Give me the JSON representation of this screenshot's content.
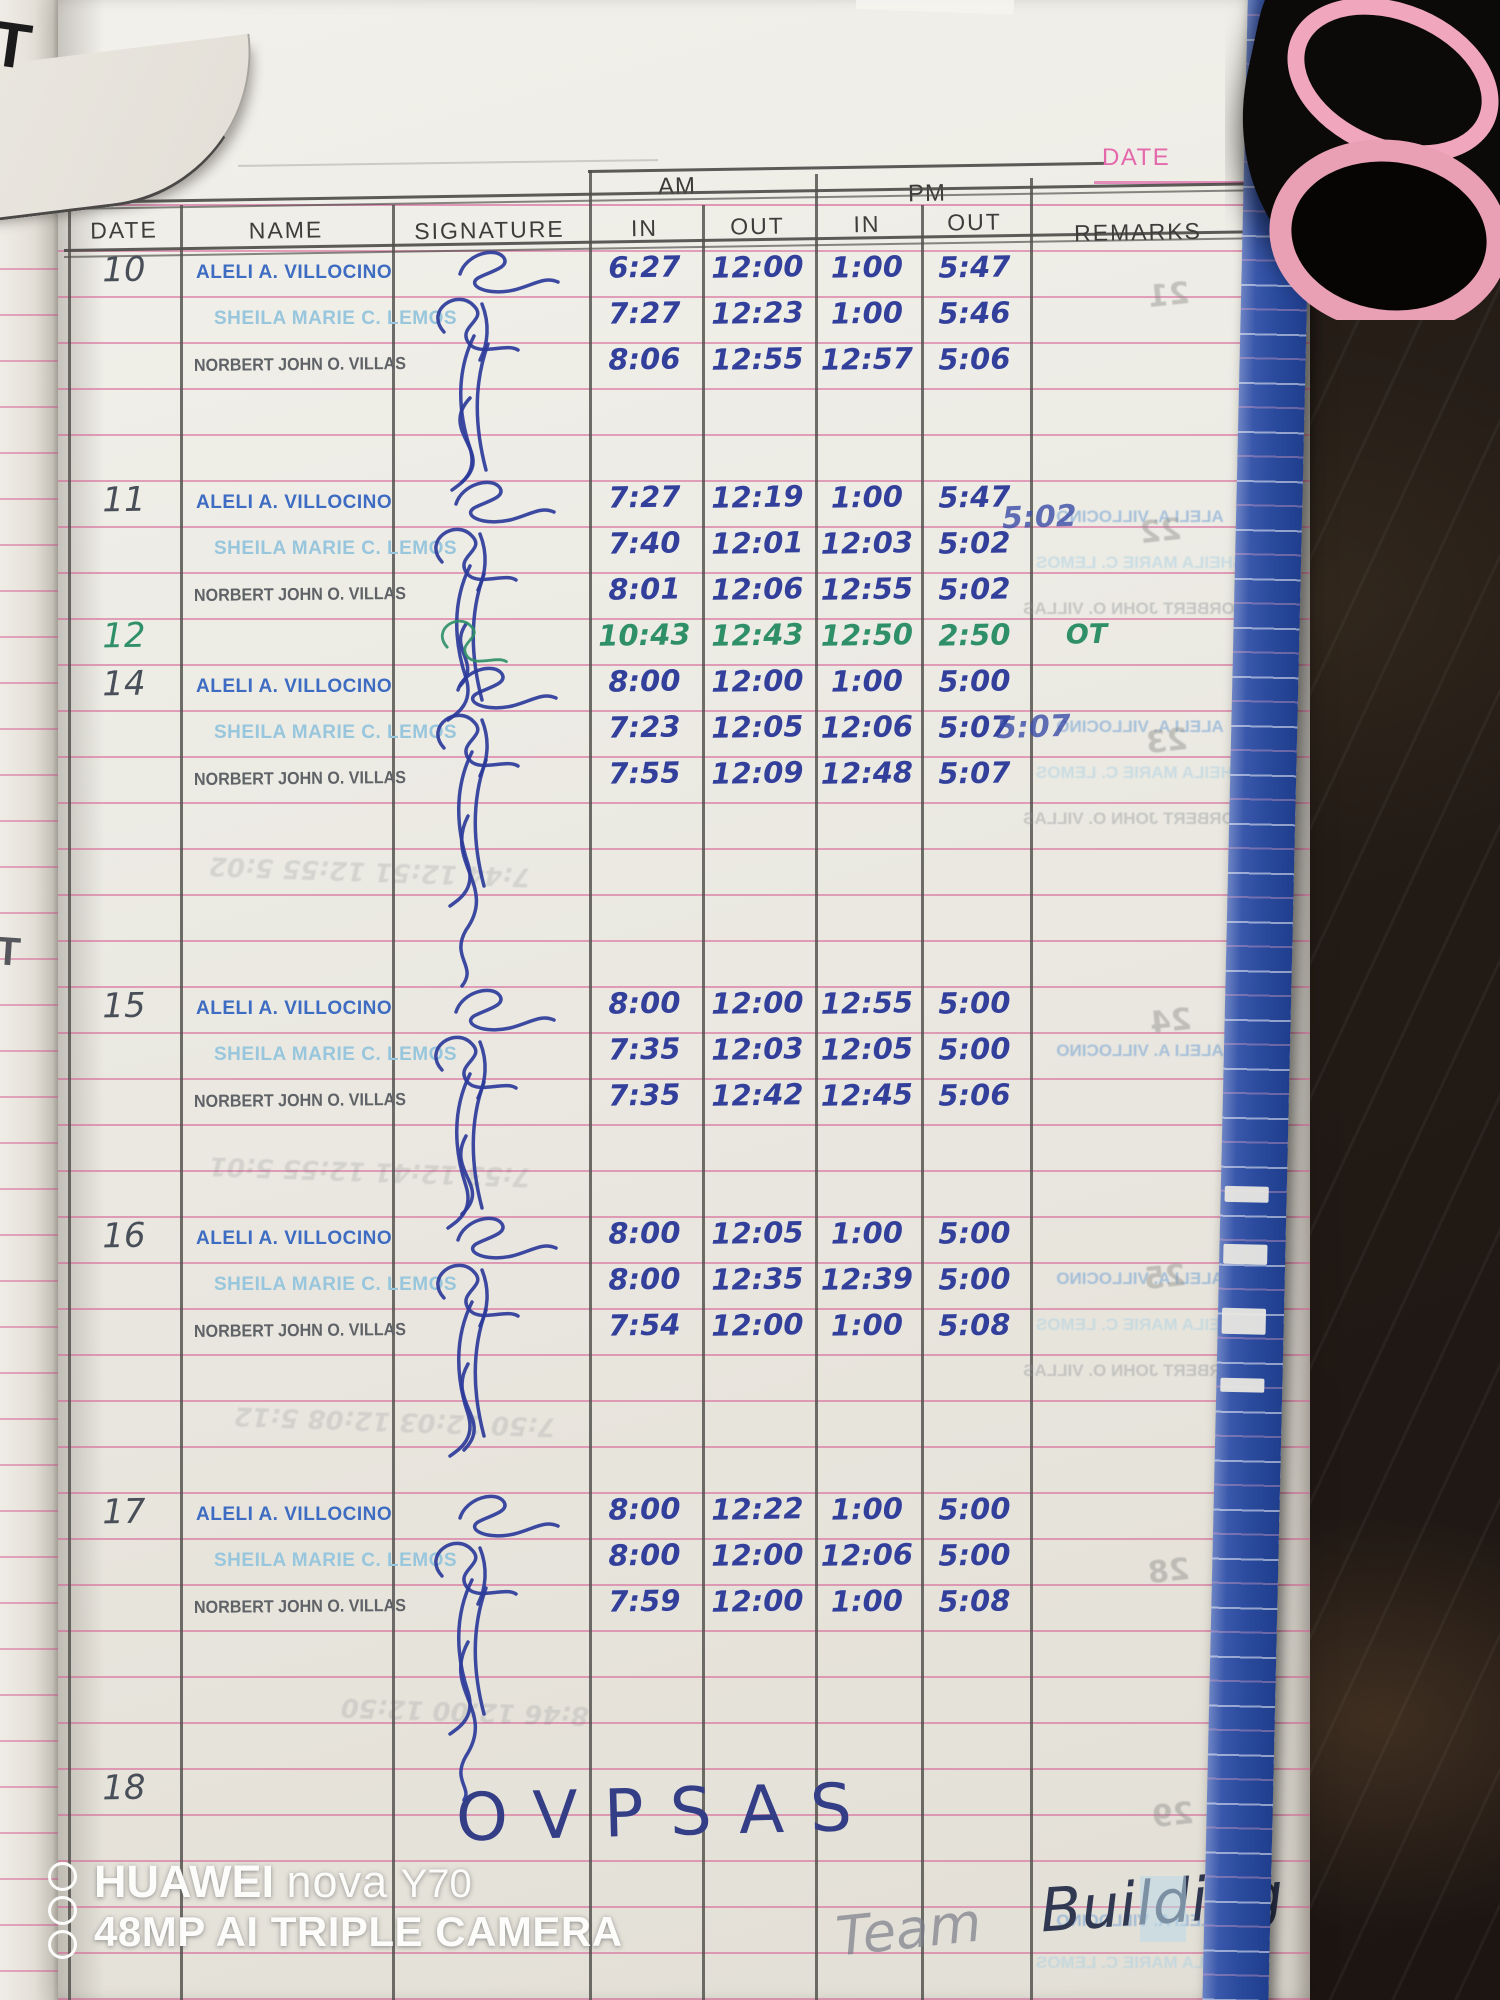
{
  "table": {
    "am_label": "AM",
    "pm_label": "PM",
    "date_label": "DATE",
    "columns": [
      "DATE",
      "NAME",
      "SIGNATURE",
      "IN",
      "OUT",
      "IN",
      "OUT",
      "REMARKS"
    ],
    "days": [
      {
        "date": "10",
        "ink": "blue",
        "entries": [
          {
            "name": "ALELI A. VILLOCINO",
            "style": "aleli",
            "in_am": "6:27",
            "out_am": "12:00",
            "in_pm": "1:00",
            "out_pm": "5:47",
            "remarks": ""
          },
          {
            "name": "SHEILA MARIE C. LEMOS",
            "style": "sheila",
            "in_am": "7:27",
            "out_am": "12:23",
            "in_pm": "1:00",
            "out_pm": "5:46",
            "remarks": ""
          },
          {
            "name": "NORBERT JOHN O. VILLAS",
            "style": "norbert",
            "in_am": "8:06",
            "out_am": "12:55",
            "in_pm": "12:57",
            "out_pm": "5:06",
            "remarks": ""
          }
        ]
      },
      {
        "date": "11",
        "ink": "blue",
        "entries": [
          {
            "name": "ALELI A. VILLOCINO",
            "style": "aleli",
            "in_am": "7:27",
            "out_am": "12:19",
            "in_pm": "1:00",
            "out_pm": "5:47",
            "remarks": ""
          },
          {
            "name": "SHEILA MARIE C. LEMOS",
            "style": "sheila",
            "in_am": "7:40",
            "out_am": "12:01",
            "in_pm": "12:03",
            "out_pm": "5:02",
            "remarks": ""
          },
          {
            "name": "NORBERT JOHN O. VILLAS",
            "style": "norbert",
            "in_am": "8:01",
            "out_am": "12:06",
            "in_pm": "12:55",
            "out_pm": "5:02",
            "remarks": ""
          }
        ]
      },
      {
        "date": "12",
        "ink": "green",
        "entries": [
          {
            "name": "",
            "style": "none",
            "in_am": "10:43",
            "out_am": "12:43",
            "in_pm": "12:50",
            "out_pm": "2:50",
            "remarks": "OT"
          }
        ]
      },
      {
        "date": "14",
        "ink": "blue",
        "entries": [
          {
            "name": "ALELI A. VILLOCINO",
            "style": "aleli",
            "in_am": "8:00",
            "out_am": "12:00",
            "in_pm": "1:00",
            "out_pm": "5:00",
            "remarks": ""
          },
          {
            "name": "SHEILA MARIE C. LEMOS",
            "style": "sheila",
            "in_am": "7:23",
            "out_am": "12:05",
            "in_pm": "12:06",
            "out_pm": "5:07",
            "remarks": ""
          },
          {
            "name": "NORBERT JOHN O. VILLAS",
            "style": "norbert",
            "in_am": "7:55",
            "out_am": "12:09",
            "in_pm": "12:48",
            "out_pm": "5:07",
            "remarks": ""
          }
        ]
      },
      {
        "date": "15",
        "ink": "blue",
        "entries": [
          {
            "name": "ALELI A. VILLOCINO",
            "style": "aleli",
            "in_am": "8:00",
            "out_am": "12:00",
            "in_pm": "12:55",
            "out_pm": "5:00",
            "remarks": ""
          },
          {
            "name": "SHEILA MARIE C. LEMOS",
            "style": "sheila",
            "in_am": "7:35",
            "out_am": "12:03",
            "in_pm": "12:05",
            "out_pm": "5:00",
            "remarks": ""
          },
          {
            "name": "NORBERT JOHN O. VILLAS",
            "style": "norbert",
            "in_am": "7:35",
            "out_am": "12:42",
            "in_pm": "12:45",
            "out_pm": "5:06",
            "remarks": ""
          }
        ]
      },
      {
        "date": "16",
        "ink": "blue",
        "entries": [
          {
            "name": "ALELI A. VILLOCINO",
            "style": "aleli",
            "in_am": "8:00",
            "out_am": "12:05",
            "in_pm": "1:00",
            "out_pm": "5:00",
            "remarks": ""
          },
          {
            "name": "SHEILA MARIE C. LEMOS",
            "style": "sheila",
            "in_am": "8:00",
            "out_am": "12:35",
            "in_pm": "12:39",
            "out_pm": "5:00",
            "remarks": ""
          },
          {
            "name": "NORBERT JOHN O. VILLAS",
            "style": "norbert",
            "in_am": "7:54",
            "out_am": "12:00",
            "in_pm": "1:00",
            "out_pm": "5:08",
            "remarks": ""
          }
        ]
      },
      {
        "date": "17",
        "ink": "blue",
        "entries": [
          {
            "name": "ALELI A. VILLOCINO",
            "style": "aleli",
            "in_am": "8:00",
            "out_am": "12:22",
            "in_pm": "1:00",
            "out_pm": "5:00",
            "remarks": ""
          },
          {
            "name": "SHEILA MARIE C. LEMOS",
            "style": "sheila",
            "in_am": "8:00",
            "out_am": "12:00",
            "in_pm": "12:06",
            "out_pm": "5:00",
            "remarks": ""
          },
          {
            "name": "NORBERT JOHN O. VILLAS",
            "style": "norbert",
            "in_am": "7:59",
            "out_am": "12:00",
            "in_pm": "1:00",
            "out_pm": "5:08",
            "remarks": ""
          }
        ]
      },
      {
        "date": "18",
        "ink": "blue",
        "entries": []
      }
    ]
  },
  "annotations": {
    "ovpsas": "OVPSAS",
    "team": "Team",
    "building": "Building"
  },
  "edge_marks": {
    "prev_page_fragment": "ARKS",
    "top_mark": "T",
    "mid_mark": "T"
  },
  "bleedthrough": {
    "ghost_times": [
      "7:44  12:51  12:55  5:02",
      "7:53  12:41  12:55  5:01",
      "7:50  12:03  12:08  5:12",
      "8:46  12:00  12:50"
    ],
    "ink_marks": [
      "5:02",
      "5:07"
    ],
    "stamps": [
      {
        "text": "ALELI A. VILLOCINO",
        "style": "aleli"
      },
      {
        "text": "SHEILA MARIE C. LEMOS",
        "style": "sheila"
      },
      {
        "text": "NORBERT JOHN O. VILLAS",
        "style": "norbert"
      },
      {
        "text": "ALELI A. VILLOCINO",
        "style": "aleli"
      },
      {
        "text": "SHEILA MARIE C. LEMOS",
        "style": "sheila"
      },
      {
        "text": "NORBERT JOHN O. VILLAS",
        "style": "norbert"
      },
      {
        "text": "ALELI A. VILLOCINO",
        "style": "aleli"
      },
      {
        "text": "ALELI A. VILLOCINO",
        "style": "aleli"
      },
      {
        "text": "SHEILA MARIE C. LEMOS",
        "style": "sheila"
      },
      {
        "text": "NORBERT JOHN O. VILLAS",
        "style": "norbert"
      },
      {
        "text": "ALELI A. VILLOCINO",
        "style": "aleli"
      },
      {
        "text": "SHEILA MARIE C. LEMOS",
        "style": "sheila"
      }
    ],
    "numbers": [
      "21",
      "22",
      "23",
      "24",
      "25",
      "28",
      "29"
    ]
  },
  "watermark": {
    "brand": "HUAWEI",
    "model": "nova",
    "variant": "Y70",
    "line2": "48MP AI TRIPLE CAMERA"
  },
  "colors": {
    "ink_blue": "#32409c",
    "ink_green": "#2f9068",
    "stamp_blue": "#3d6cc2",
    "stamp_light_blue": "#97c6dd",
    "rule_pink": "#d65c92",
    "book_edge_blue": "#2c4da0"
  }
}
